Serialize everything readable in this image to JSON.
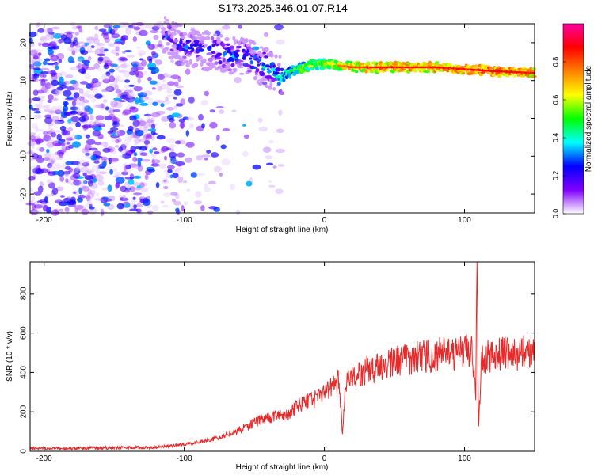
{
  "title": "S173.2025.346.01.07.R14",
  "chart_data": [
    {
      "type": "heatmap",
      "xlabel": "Height of straight line (km)",
      "ylabel": "Frequency (Hz)",
      "xlim": [
        -210,
        150
      ],
      "ylim": [
        -25,
        25
      ],
      "x_ticks": [
        -200,
        -100,
        0,
        100
      ],
      "y_ticks": [
        -20,
        -10,
        0,
        10,
        20
      ],
      "colorbar": {
        "label": "Normalized spectral amplitude",
        "range": [
          0,
          1
        ],
        "ticks": [
          0.0,
          0.2,
          0.4,
          0.6,
          0.8
        ],
        "colors": [
          "#ffffff",
          "#8000ff",
          "#0000ff",
          "#00ffff",
          "#00ff00",
          "#ffff00",
          "#ff8000",
          "#ff0000",
          "#ff00a0"
        ]
      },
      "ridge": {
        "x": [
          -115,
          -100,
          -85,
          -70,
          -55,
          -40,
          -30,
          -20,
          -10,
          0,
          10,
          20,
          40,
          60,
          80,
          100,
          120,
          150
        ],
        "freq": [
          22,
          19,
          18,
          17,
          16,
          13,
          11,
          13,
          14,
          14.5,
          14,
          13.5,
          13.5,
          13.5,
          13.5,
          13,
          12.5,
          12
        ],
        "amplitude": [
          0.3,
          0.35,
          0.35,
          0.4,
          0.4,
          0.45,
          0.5,
          0.6,
          0.65,
          0.7,
          0.75,
          0.8,
          0.85,
          0.85,
          0.85,
          0.85,
          0.9,
          0.85
        ]
      },
      "grid": false
    },
    {
      "type": "line",
      "xlabel": "Height of straight line (km)",
      "ylabel": "SNR (10 * v/v)",
      "xlim": [
        -210,
        150
      ],
      "ylim": [
        0,
        960
      ],
      "x_ticks": [
        -200,
        -100,
        0,
        100
      ],
      "y_ticks": [
        0,
        200,
        400,
        600,
        800
      ],
      "color": "#e8292a",
      "series": [
        {
          "name": "",
          "x": [
            -210,
            -180,
            -150,
            -120,
            -100,
            -80,
            -60,
            -45,
            -35,
            -25,
            -20,
            -15,
            -10,
            -5,
            0,
            5,
            10,
            13,
            15,
            20,
            30,
            40,
            50,
            60,
            70,
            80,
            90,
            100,
            105,
            108,
            109,
            110,
            112,
            115,
            120,
            130,
            140,
            150
          ],
          "y": [
            15,
            15,
            18,
            20,
            35,
            60,
            110,
            160,
            180,
            190,
            220,
            250,
            260,
            270,
            300,
            320,
            360,
            90,
            340,
            380,
            410,
            430,
            450,
            470,
            480,
            490,
            490,
            500,
            520,
            300,
            940,
            100,
            460,
            480,
            490,
            500,
            500,
            500
          ]
        }
      ],
      "grid": false
    }
  ]
}
